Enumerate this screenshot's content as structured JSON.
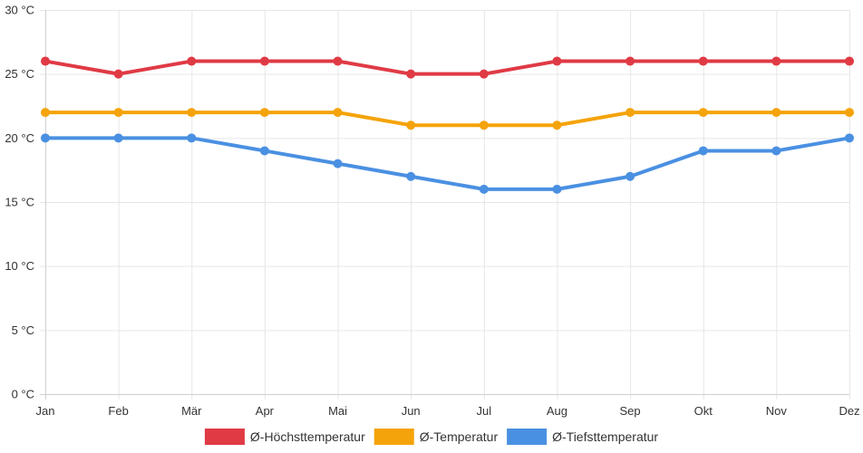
{
  "chart_data": {
    "type": "line",
    "title": "",
    "xlabel": "",
    "ylabel": "",
    "categories": [
      "Jan",
      "Feb",
      "Mär",
      "Apr",
      "Mai",
      "Jun",
      "Jul",
      "Aug",
      "Sep",
      "Okt",
      "Nov",
      "Dez"
    ],
    "ylim": [
      0,
      30
    ],
    "yticks": [
      0,
      5,
      10,
      15,
      20,
      25,
      30
    ],
    "y_unit": " °C",
    "grid": true,
    "legend_position": "bottom",
    "series": [
      {
        "name": "Ø-Höchsttemperatur",
        "color": "#e03a45",
        "values": [
          26,
          25,
          26,
          26,
          26,
          25,
          25,
          26,
          26,
          26,
          26,
          26
        ]
      },
      {
        "name": "Ø-Temperatur",
        "color": "#f5a30a",
        "values": [
          22,
          22,
          22,
          22,
          22,
          21,
          21,
          21,
          22,
          22,
          22,
          22
        ]
      },
      {
        "name": "Ø-Tiefsttemperatur",
        "color": "#4a90e2",
        "values": [
          20,
          20,
          20,
          19,
          18,
          17,
          16,
          16,
          17,
          19,
          19,
          20
        ]
      }
    ]
  }
}
